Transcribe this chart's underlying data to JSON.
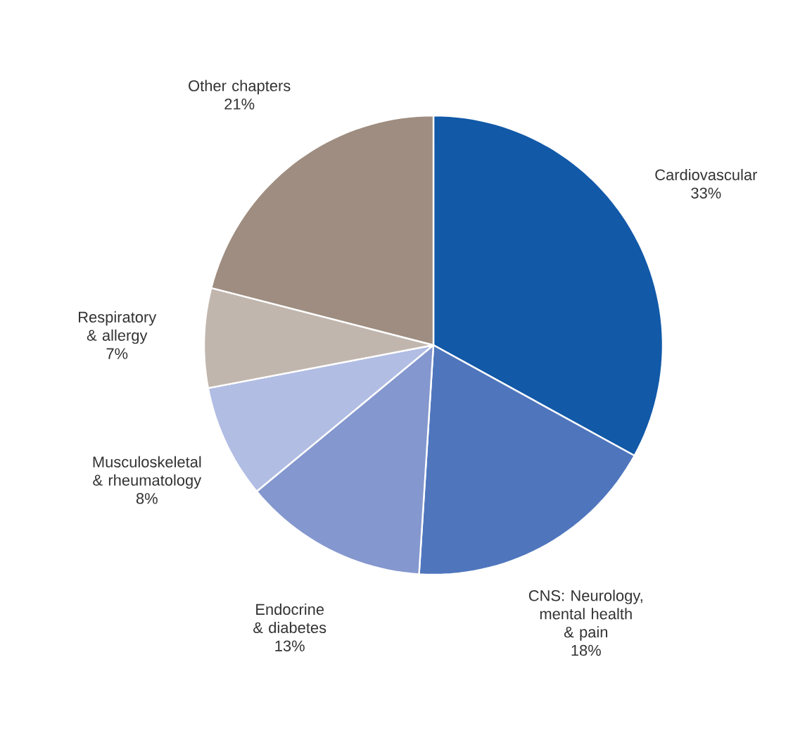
{
  "chart_data": {
    "type": "pie",
    "categories": [
      "Cardiovascular",
      "CNS: Neurology, mental health & pain",
      "Endocrine & diabetes",
      "Musculoskeletal & rheumatology",
      "Respiratory & allergy",
      "Other chapters"
    ],
    "values": [
      33,
      18,
      13,
      8,
      7,
      21
    ],
    "value_labels": [
      "33%",
      "18%",
      "13%",
      "8%",
      "7%",
      "21%"
    ],
    "colors": [
      "#1259a8",
      "#4f76bd",
      "#8497ce",
      "#b1bde3",
      "#c1b6ae",
      "#9e8d80"
    ]
  }
}
